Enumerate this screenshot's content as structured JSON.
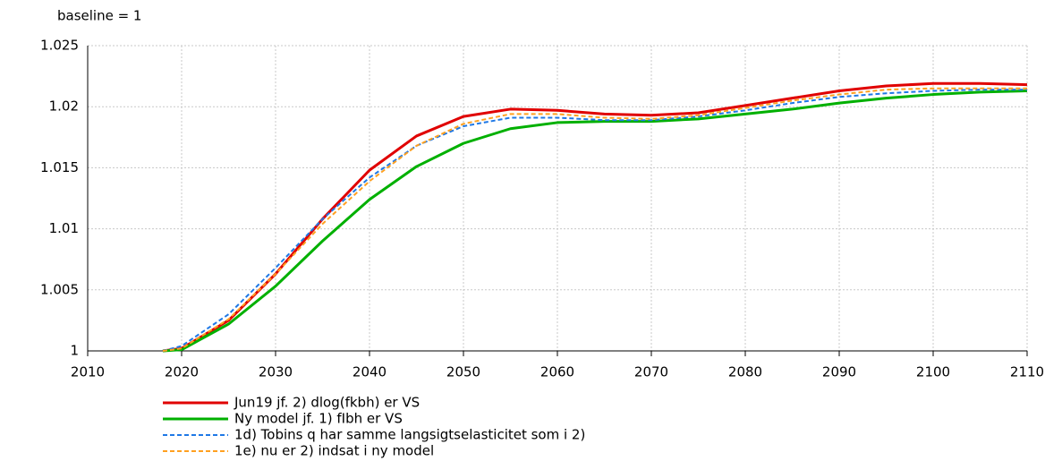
{
  "chart_data": {
    "type": "line",
    "subtitle": "baseline = 1",
    "x": [
      2018,
      2020,
      2025,
      2030,
      2035,
      2040,
      2045,
      2050,
      2055,
      2060,
      2065,
      2070,
      2075,
      2080,
      2085,
      2090,
      2095,
      2100,
      2105,
      2110
    ],
    "xlim": [
      2010,
      2110
    ],
    "xticks": [
      2010,
      2020,
      2030,
      2040,
      2050,
      2060,
      2070,
      2080,
      2090,
      2100,
      2110
    ],
    "ylim": [
      1,
      1.025
    ],
    "yticks": [
      1,
      1.005,
      1.01,
      1.015,
      1.02,
      1.025
    ],
    "grid": true,
    "legend": "bottom-left",
    "series": [
      {
        "name": "Jun19 jf. 2) dlog(fkbh) er VS",
        "color": "#e00000",
        "dash": false,
        "values": [
          1.0,
          1.0002,
          1.0025,
          1.0063,
          1.0108,
          1.0148,
          1.0176,
          1.0192,
          1.0198,
          1.0197,
          1.0194,
          1.0193,
          1.0195,
          1.0201,
          1.0207,
          1.0213,
          1.0217,
          1.0219,
          1.0219,
          1.0218
        ]
      },
      {
        "name": "Ny model jf. 1) fIbh er VS",
        "color": "#00b000",
        "dash": false,
        "values": [
          1.0,
          1.0001,
          1.0022,
          1.0053,
          1.009,
          1.0124,
          1.0151,
          1.017,
          1.0182,
          1.0187,
          1.0188,
          1.0188,
          1.019,
          1.0194,
          1.0198,
          1.0203,
          1.0207,
          1.021,
          1.0212,
          1.0213
        ]
      },
      {
        "name": "1d) Tobins q har samme langsigtselasticitet som i 2)",
        "color": "#1e78e6",
        "dash": true,
        "values": [
          1.0,
          1.0004,
          1.003,
          1.0068,
          1.0108,
          1.0142,
          1.0168,
          1.0184,
          1.0191,
          1.0191,
          1.0189,
          1.0189,
          1.0192,
          1.0197,
          1.0203,
          1.0208,
          1.0211,
          1.0213,
          1.0214,
          1.0214
        ]
      },
      {
        "name": "1e) nu er 2) indsat i ny model",
        "color": "#ffa020",
        "dash": true,
        "values": [
          1.0,
          1.0002,
          1.0026,
          1.0063,
          1.0104,
          1.0139,
          1.0168,
          1.0186,
          1.0194,
          1.0194,
          1.0191,
          1.019,
          1.0193,
          1.0199,
          1.0205,
          1.021,
          1.0214,
          1.0215,
          1.0215,
          1.0215
        ]
      }
    ]
  }
}
